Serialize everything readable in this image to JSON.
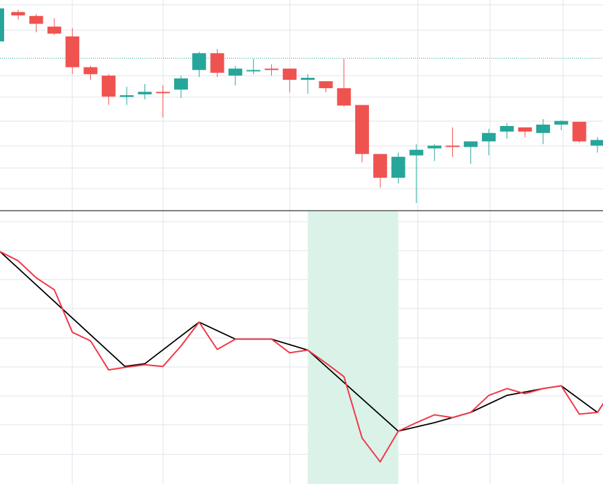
{
  "colors": {
    "up": "#26a69a",
    "down": "#ef5350",
    "grid": "#e0e3eb",
    "line_raw": "#f23645",
    "line_zigzag": "#000000",
    "highlight": "#daf2e8",
    "ref_line": "#26a69a",
    "divider": "#000000"
  },
  "chart_data": [
    {
      "type": "candlestick",
      "pane": "price",
      "grid": true,
      "price_scale": [
        55,
        100
      ],
      "reference_price": 82.3,
      "candles": [
        {
          "o": 88.2,
          "h": 100.0,
          "l": 84.0,
          "c": 100.0
        },
        {
          "o": 98.7,
          "h": 99.5,
          "l": 96.0,
          "c": 97.5
        },
        {
          "o": 97.3,
          "h": 98.0,
          "l": 91.5,
          "c": 94.5
        },
        {
          "o": 93.5,
          "h": 96.5,
          "l": 90.5,
          "c": 91.0
        },
        {
          "o": 90.0,
          "h": 93.0,
          "l": 76.5,
          "c": 79.0
        },
        {
          "o": 79.0,
          "h": 79.5,
          "l": 74.5,
          "c": 76.5
        },
        {
          "o": 76.0,
          "h": 76.5,
          "l": 65.5,
          "c": 68.5
        },
        {
          "o": 68.4,
          "h": 72.0,
          "l": 65.5,
          "c": 69.0
        },
        {
          "o": 69.3,
          "h": 73.0,
          "l": 67.5,
          "c": 70.2
        },
        {
          "o": 70.2,
          "h": 72.5,
          "l": 61.0,
          "c": 69.8
        },
        {
          "o": 71.0,
          "h": 76.0,
          "l": 68.0,
          "c": 75.0
        },
        {
          "o": 78.0,
          "h": 84.5,
          "l": 75.5,
          "c": 84.0
        },
        {
          "o": 84.0,
          "h": 85.5,
          "l": 75.5,
          "c": 77.0
        },
        {
          "o": 76.0,
          "h": 79.5,
          "l": 72.5,
          "c": 78.5
        },
        {
          "o": 78.0,
          "h": 82.0,
          "l": 76.5,
          "c": 78.0
        },
        {
          "o": 78.5,
          "h": 80.0,
          "l": 76.0,
          "c": 78.0
        },
        {
          "o": 78.5,
          "h": 78.5,
          "l": 70.0,
          "c": 74.5
        },
        {
          "o": 74.5,
          "h": 76.5,
          "l": 69.5,
          "c": 75.2
        },
        {
          "o": 74.0,
          "h": 74.0,
          "l": 70.0,
          "c": 71.5
        },
        {
          "o": 71.5,
          "h": 82.0,
          "l": 65.0,
          "c": 65.3
        },
        {
          "o": 65.5,
          "h": 65.5,
          "l": 45.0,
          "c": 48.0
        },
        {
          "o": 48.0,
          "h": 48.0,
          "l": 36.0,
          "c": 39.5
        },
        {
          "o": 39.5,
          "h": 48.5,
          "l": 37.5,
          "c": 47.0
        },
        {
          "o": 47.5,
          "h": 51.5,
          "l": 30.5,
          "c": 49.5
        },
        {
          "o": 50.0,
          "h": 51.5,
          "l": 45.5,
          "c": 51.0
        },
        {
          "o": 51.0,
          "h": 57.5,
          "l": 47.0,
          "c": 50.5
        },
        {
          "o": 50.5,
          "h": 52.5,
          "l": 44.5,
          "c": 52.5
        },
        {
          "o": 52.5,
          "h": 57.0,
          "l": 47.5,
          "c": 55.5
        },
        {
          "o": 56.0,
          "h": 59.0,
          "l": 53.5,
          "c": 58.0
        },
        {
          "o": 57.5,
          "h": 57.5,
          "l": 54.0,
          "c": 56.0
        },
        {
          "o": 55.5,
          "h": 60.5,
          "l": 51.5,
          "c": 58.5
        },
        {
          "o": 58.5,
          "h": 60.0,
          "l": 56.5,
          "c": 59.8
        },
        {
          "o": 59.5,
          "h": 59.5,
          "l": 52.0,
          "c": 52.5
        },
        {
          "o": 51.0,
          "h": 54.0,
          "l": 48.5,
          "c": 53.0
        }
      ]
    },
    {
      "type": "line",
      "pane": "indicator",
      "grid": true,
      "value_scale": [
        55,
        100
      ],
      "highlight_range_x": [
        17,
        22
      ],
      "series": [
        {
          "role": "raw",
          "values": [
            88.2,
            85.5,
            80.5,
            77,
            64.5,
            62,
            53.5,
            54.3,
            55,
            54.5,
            60.5,
            67.5,
            59.5,
            62.5,
            62.5,
            62.5,
            58.5,
            59.3,
            55.5,
            51.5,
            33.5,
            26.5,
            35.5,
            38.0,
            40.3,
            39.5,
            41.0,
            46.0,
            48.0,
            46.5,
            48.0,
            48.8,
            40.5,
            41.0,
            49.0
          ]
        },
        {
          "role": "zigzag",
          "points": [
            [
              0,
              88.2
            ],
            [
              6.9,
              54.5
            ],
            [
              8,
              55.3
            ],
            [
              11,
              67.5
            ],
            [
              13,
              62.5
            ],
            [
              15,
              62.5
            ],
            [
              17,
              59.3
            ],
            [
              22,
              35.5
            ],
            [
              24,
              38.0
            ],
            [
              26,
              41.0
            ],
            [
              28,
              46.0
            ],
            [
              30,
              48.0
            ],
            [
              31,
              48.8
            ],
            [
              33,
              41.0
            ],
            [
              34,
              49.0
            ]
          ]
        }
      ]
    }
  ]
}
